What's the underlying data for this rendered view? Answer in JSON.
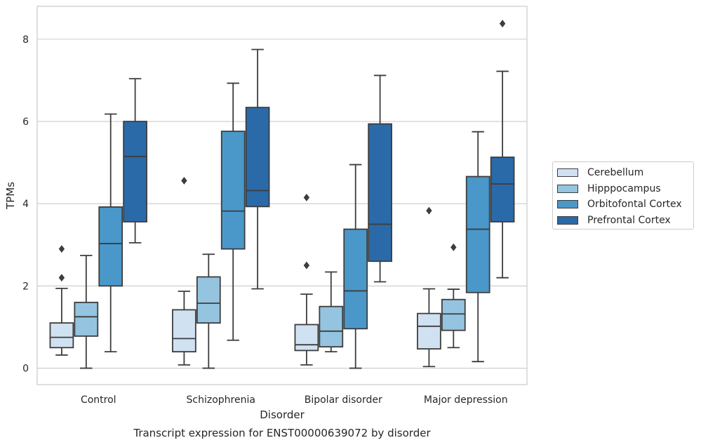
{
  "chart_data": {
    "type": "box",
    "title": "Transcript expression for ENST00000639072 by disorder",
    "xlabel": "Disorder",
    "ylabel": "TPMs",
    "ylim": [
      -0.4,
      8.8
    ],
    "yticks": [
      "0",
      "2",
      "4",
      "6",
      "8"
    ],
    "grid": "horizontal",
    "legend_position": "right",
    "categories": [
      "Control",
      "Schizophrenia",
      "Bipolar disorder",
      "Major depression"
    ],
    "series": [
      {
        "name": "Cerebellum",
        "color": "#d0e1f2",
        "boxes": [
          {
            "whisker_low": 0.32,
            "q1": 0.5,
            "median": 0.75,
            "q3": 1.1,
            "whisker_high": 1.94,
            "outliers": [
              2.2,
              2.9
            ]
          },
          {
            "whisker_low": 0.08,
            "q1": 0.4,
            "median": 0.72,
            "q3": 1.42,
            "whisker_high": 1.87,
            "outliers": [
              4.56
            ]
          },
          {
            "whisker_low": 0.08,
            "q1": 0.43,
            "median": 0.57,
            "q3": 1.06,
            "whisker_high": 1.8,
            "outliers": [
              2.5,
              4.15
            ]
          },
          {
            "whisker_low": 0.04,
            "q1": 0.47,
            "median": 1.02,
            "q3": 1.33,
            "whisker_high": 1.93,
            "outliers": [
              3.83
            ]
          }
        ]
      },
      {
        "name": "Hipppocampus",
        "color": "#94c4df",
        "boxes": [
          {
            "whisker_low": 0.0,
            "q1": 0.78,
            "median": 1.25,
            "q3": 1.6,
            "whisker_high": 2.74,
            "outliers": []
          },
          {
            "whisker_low": 0.0,
            "q1": 1.1,
            "median": 1.58,
            "q3": 2.22,
            "whisker_high": 2.77,
            "outliers": []
          },
          {
            "whisker_low": 0.4,
            "q1": 0.52,
            "median": 0.9,
            "q3": 1.5,
            "whisker_high": 2.34,
            "outliers": []
          },
          {
            "whisker_low": 0.5,
            "q1": 0.92,
            "median": 1.32,
            "q3": 1.67,
            "whisker_high": 1.92,
            "outliers": [
              2.94
            ]
          }
        ]
      },
      {
        "name": "Orbitofontal Cortex",
        "color": "#4a98c9",
        "boxes": [
          {
            "whisker_low": 0.4,
            "q1": 2.0,
            "median": 3.03,
            "q3": 3.92,
            "whisker_high": 6.18,
            "outliers": []
          },
          {
            "whisker_low": 0.68,
            "q1": 2.9,
            "median": 3.82,
            "q3": 5.76,
            "whisker_high": 6.93,
            "outliers": []
          },
          {
            "whisker_low": 0.0,
            "q1": 0.96,
            "median": 1.88,
            "q3": 3.38,
            "whisker_high": 4.95,
            "outliers": []
          },
          {
            "whisker_low": 0.16,
            "q1": 1.84,
            "median": 3.38,
            "q3": 4.66,
            "whisker_high": 5.75,
            "outliers": []
          }
        ]
      },
      {
        "name": "Prefrontal Cortex",
        "color": "#2b6aa8",
        "boxes": [
          {
            "whisker_low": 3.05,
            "q1": 3.56,
            "median": 5.15,
            "q3": 6.0,
            "whisker_high": 7.04,
            "outliers": []
          },
          {
            "whisker_low": 1.93,
            "q1": 3.93,
            "median": 4.32,
            "q3": 6.34,
            "whisker_high": 7.75,
            "outliers": []
          },
          {
            "whisker_low": 2.1,
            "q1": 2.6,
            "median": 3.5,
            "q3": 5.94,
            "whisker_high": 7.12,
            "outliers": []
          },
          {
            "whisker_low": 2.2,
            "q1": 3.56,
            "median": 4.48,
            "q3": 5.13,
            "whisker_high": 7.22,
            "outliers": [
              8.38
            ]
          }
        ]
      }
    ]
  }
}
